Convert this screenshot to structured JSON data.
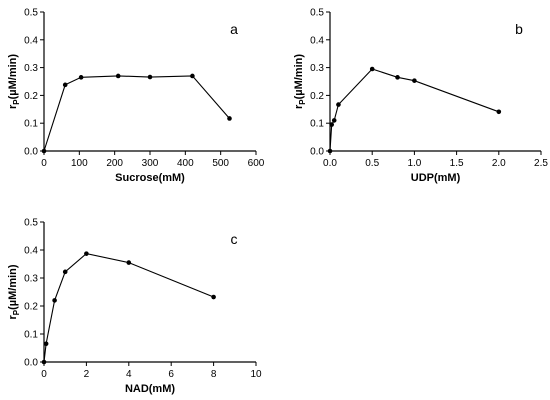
{
  "chart_data": [
    {
      "type": "line",
      "panel_label": "a",
      "xlabel": "Sucrose(mM)",
      "ylabel_main": "r",
      "ylabel_sub": "P",
      "ylabel_rest": "(µM/min)",
      "xlim": [
        0,
        600
      ],
      "ylim": [
        0,
        0.5
      ],
      "xticks": [
        "0",
        "100",
        "200",
        "300",
        "400",
        "500",
        "600"
      ],
      "yticks": [
        "0.0",
        "0.1",
        "0.2",
        "0.3",
        "0.4",
        "0.5"
      ],
      "x": [
        0,
        60,
        105,
        210,
        300,
        420,
        525
      ],
      "y": [
        0.0,
        0.238,
        0.265,
        0.27,
        0.266,
        0.27,
        0.117
      ]
    },
    {
      "type": "line",
      "panel_label": "b",
      "xlabel": "UDP(mM)",
      "ylabel_main": "r",
      "ylabel_sub": "P",
      "ylabel_rest": "(µM/min)",
      "xlim": [
        0,
        2.5
      ],
      "ylim": [
        0,
        0.5
      ],
      "xticks": [
        "0.0",
        "0.5",
        "1.0",
        "1.5",
        "2.0",
        "2.5"
      ],
      "yticks": [
        "0.0",
        "0.1",
        "0.2",
        "0.3",
        "0.4",
        "0.5"
      ],
      "x": [
        0,
        0.02,
        0.05,
        0.1,
        0.5,
        0.8,
        1.0,
        2.0
      ],
      "y": [
        0.0,
        0.095,
        0.11,
        0.167,
        0.295,
        0.265,
        0.253,
        0.141
      ]
    },
    {
      "type": "line",
      "panel_label": "c",
      "xlabel": "NAD(mM)",
      "ylabel_main": "r",
      "ylabel_sub": "P",
      "ylabel_rest": "(µM/min)",
      "xlim": [
        0,
        10
      ],
      "ylim": [
        0,
        0.5
      ],
      "xticks": [
        "0",
        "2",
        "4",
        "6",
        "8",
        "10"
      ],
      "yticks": [
        "0.0",
        "0.1",
        "0.2",
        "0.3",
        "0.4",
        "0.5"
      ],
      "x": [
        0,
        0.1,
        0.5,
        1.0,
        2.0,
        4.0,
        8.0
      ],
      "y": [
        0.0,
        0.065,
        0.22,
        0.322,
        0.387,
        0.355,
        0.232
      ]
    }
  ]
}
